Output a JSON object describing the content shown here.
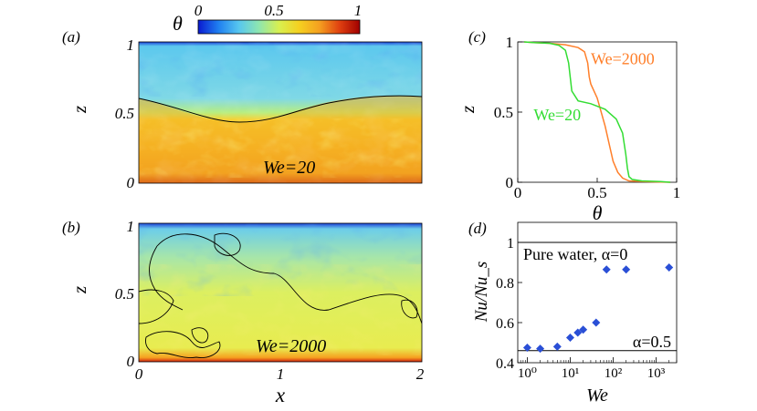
{
  "colorbar": {
    "symbol": "θ",
    "ticks": [
      "0",
      "0.5",
      "1"
    ],
    "colors": [
      "#0a1ad0",
      "#1f7ff0",
      "#56c6f0",
      "#8ee6b0",
      "#d8f050",
      "#f5d020",
      "#f5a020",
      "#e04010",
      "#a00000"
    ]
  },
  "panel_a": {
    "label": "(a)",
    "annotation": "We=20",
    "z_ticks": [
      "0",
      "0.5",
      "1"
    ],
    "z_label": "z"
  },
  "panel_b": {
    "label": "(b)",
    "annotation": "We=2000",
    "z_ticks": [
      "0",
      "0.5",
      "1"
    ],
    "z_label": "z",
    "x_ticks": [
      "0",
      "1",
      "2"
    ],
    "x_label": "x"
  },
  "chart_data": [
    {
      "type": "line",
      "panel": "(c)",
      "xlabel": "θ",
      "ylabel": "z",
      "xlim": [
        0,
        1
      ],
      "ylim": [
        0,
        1
      ],
      "x_ticks": [
        "0",
        "0.5",
        "1"
      ],
      "y_ticks": [
        "0",
        "0.5",
        "1"
      ],
      "series": [
        {
          "name": "We=2000",
          "color": "#ff7f2a",
          "theta": [
            0.04,
            0.1,
            0.2,
            0.3,
            0.38,
            0.42,
            0.44,
            0.45,
            0.46,
            0.5,
            0.55,
            0.58,
            0.6,
            0.63,
            0.66,
            0.7,
            0.8,
            0.9,
            0.96
          ],
          "z": [
            1.0,
            0.995,
            0.99,
            0.98,
            0.96,
            0.93,
            0.85,
            0.75,
            0.7,
            0.6,
            0.4,
            0.25,
            0.15,
            0.07,
            0.03,
            0.01,
            0.005,
            0.002,
            0.0
          ]
        },
        {
          "name": "We=20",
          "color": "#33dd33",
          "theta": [
            0.04,
            0.1,
            0.2,
            0.26,
            0.3,
            0.32,
            0.34,
            0.38,
            0.46,
            0.55,
            0.62,
            0.66,
            0.68,
            0.69,
            0.7,
            0.72,
            0.78,
            0.9,
            0.96
          ],
          "z": [
            1.0,
            0.995,
            0.99,
            0.975,
            0.94,
            0.85,
            0.65,
            0.58,
            0.56,
            0.52,
            0.45,
            0.35,
            0.2,
            0.1,
            0.04,
            0.02,
            0.01,
            0.005,
            0.0
          ]
        }
      ]
    },
    {
      "type": "scatter",
      "panel": "(d)",
      "xlabel": "We",
      "ylabel": "Nu/Nu_s",
      "xscale": "log",
      "xlim": [
        0.6,
        3000
      ],
      "ylim": [
        0.4,
        1.1
      ],
      "y_ticks": [
        "0.4",
        "0.6",
        "0.8",
        "1"
      ],
      "x_ticks": [
        "10⁰",
        "10¹",
        "10²",
        "10³"
      ],
      "hlines": [
        {
          "y": 1.0,
          "label": "Pure water, α=0"
        },
        {
          "y": 0.46,
          "label": "α=0.5"
        }
      ],
      "x": [
        1,
        2,
        5,
        10,
        15,
        20,
        40,
        70,
        200,
        2000
      ],
      "y": [
        0.475,
        0.47,
        0.48,
        0.525,
        0.55,
        0.565,
        0.6,
        0.865,
        0.865,
        0.875
      ],
      "marker_color": "#2a4fd6"
    }
  ]
}
